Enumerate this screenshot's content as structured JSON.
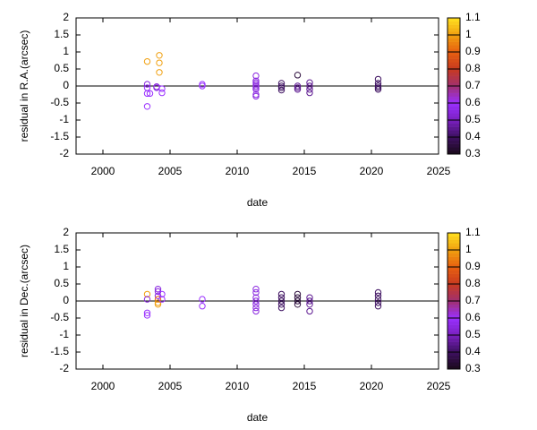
{
  "chart_data": [
    {
      "type": "scatter",
      "ylabel": "residual in R.A.(arcsec)",
      "xlabel": "date",
      "xlim": [
        1998,
        2025
      ],
      "xticks": [
        2000,
        2005,
        2010,
        2015,
        2020,
        2025
      ],
      "ylim": [
        -2,
        2
      ],
      "yticks": [
        -2,
        -1.5,
        -1,
        -0.5,
        0,
        0.5,
        1,
        1.5,
        2
      ],
      "hline": 0,
      "cblim": [
        0.3,
        1.1
      ],
      "cbticks": [
        0.3,
        0.4,
        0.5,
        0.6,
        0.7,
        0.8,
        0.9,
        1,
        1.1
      ],
      "palette": [
        "#1a0a1a",
        "#3d1060",
        "#7a20c0",
        "#9a30ff",
        "#a03070",
        "#c83a20",
        "#e86010",
        "#f0a010",
        "#ffe020"
      ],
      "x": [
        2003.3,
        2003.3,
        2003.3,
        2003.3,
        2003.3,
        2003.5,
        2004.2,
        2004.2,
        2004.2,
        2004.0,
        2004.0,
        2004.4,
        2004.4,
        2007.4,
        2007.4,
        2011.4,
        2011.4,
        2011.4,
        2011.4,
        2011.4,
        2011.4,
        2011.4,
        2011.4,
        2011.4,
        2013.3,
        2013.3,
        2013.3,
        2013.3,
        2014.5,
        2014.5,
        2014.5,
        2014.5,
        2015.4,
        2015.4,
        2015.4,
        2015.4,
        2020.5,
        2020.5,
        2020.5,
        2020.5,
        2020.5
      ],
      "values": [
        0.72,
        0.05,
        -0.05,
        -0.22,
        -0.6,
        -0.22,
        0.9,
        0.68,
        0.4,
        -0.02,
        -0.05,
        -0.08,
        -0.2,
        0.05,
        0.0,
        0.3,
        0.15,
        0.1,
        0.05,
        0,
        -0.05,
        -0.1,
        -0.25,
        -0.3,
        0.08,
        0,
        -0.05,
        -0.12,
        0.32,
        0,
        -0.05,
        -0.1,
        0.1,
        0,
        -0.1,
        -0.2,
        0.2,
        0.08,
        0,
        -0.05,
        -0.1
      ],
      "cvalues": [
        1.0,
        0.55,
        0.6,
        0.6,
        0.6,
        0.6,
        1.0,
        1.0,
        1.0,
        0.55,
        0.55,
        0.6,
        0.6,
        0.6,
        0.6,
        0.55,
        0.55,
        0.55,
        0.55,
        0.55,
        0.55,
        0.55,
        0.55,
        0.55,
        0.4,
        0.4,
        0.4,
        0.4,
        0.35,
        0.45,
        0.45,
        0.45,
        0.45,
        0.45,
        0.45,
        0.45,
        0.4,
        0.4,
        0.4,
        0.4,
        0.4
      ]
    },
    {
      "type": "scatter",
      "ylabel": "residual in Dec.(arcsec)",
      "xlabel": "date",
      "xlim": [
        1998,
        2025
      ],
      "xticks": [
        2000,
        2005,
        2010,
        2015,
        2020,
        2025
      ],
      "ylim": [
        -2,
        2
      ],
      "yticks": [
        -2,
        -1.5,
        -1,
        -0.5,
        0,
        0.5,
        1,
        1.5,
        2
      ],
      "hline": 0,
      "cblim": [
        0.3,
        1.1
      ],
      "cbticks": [
        0.3,
        0.4,
        0.5,
        0.6,
        0.7,
        0.8,
        0.9,
        1,
        1.1
      ],
      "palette": [
        "#1a0a1a",
        "#3d1060",
        "#7a20c0",
        "#9a30ff",
        "#a03070",
        "#c83a20",
        "#e86010",
        "#f0a010",
        "#ffe020"
      ],
      "x": [
        2003.3,
        2003.3,
        2003.3,
        2003.3,
        2004.1,
        2004.1,
        2004.1,
        2004.1,
        2004.1,
        2004.1,
        2004.4,
        2004.4,
        2007.4,
        2007.4,
        2011.4,
        2011.4,
        2011.4,
        2011.4,
        2011.4,
        2011.4,
        2011.4,
        2013.3,
        2013.3,
        2013.3,
        2013.3,
        2013.3,
        2014.5,
        2014.5,
        2014.5,
        2014.5,
        2015.4,
        2015.4,
        2015.4,
        2015.4,
        2020.5,
        2020.5,
        2020.5,
        2020.5,
        2020.5
      ],
      "values": [
        0.2,
        -0.35,
        -0.42,
        0.05,
        0.35,
        0.28,
        0.15,
        0.05,
        -0.05,
        -0.1,
        0.2,
        0.05,
        0.05,
        -0.15,
        0.35,
        0.25,
        0.1,
        0,
        -0.1,
        -0.2,
        -0.3,
        0.2,
        0.1,
        0,
        -0.1,
        -0.2,
        0.2,
        0.1,
        0,
        -0.1,
        0.1,
        0,
        -0.1,
        -0.3,
        0.25,
        0.15,
        0.05,
        -0.05,
        -0.15
      ],
      "cvalues": [
        1.0,
        0.6,
        0.6,
        0.55,
        0.55,
        0.55,
        0.55,
        0.9,
        1.0,
        1.0,
        0.6,
        0.6,
        0.6,
        0.6,
        0.55,
        0.55,
        0.55,
        0.55,
        0.55,
        0.55,
        0.55,
        0.4,
        0.4,
        0.4,
        0.4,
        0.4,
        0.35,
        0.35,
        0.35,
        0.35,
        0.45,
        0.45,
        0.45,
        0.45,
        0.4,
        0.4,
        0.4,
        0.4,
        0.4
      ]
    }
  ]
}
